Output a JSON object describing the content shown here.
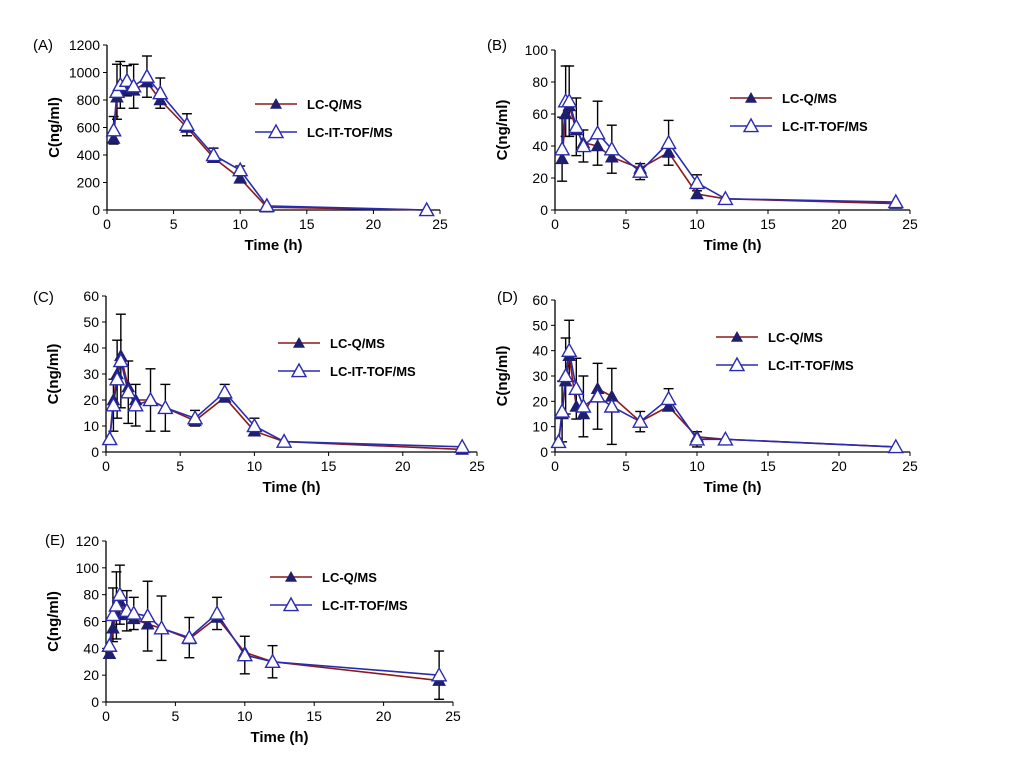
{
  "figure": {
    "legend_labels": [
      "LC-Q/MS",
      "LC-IT-TOF/MS"
    ],
    "colors": {
      "q_line": "#8b1a1a",
      "q_marker": "#1f1f6e",
      "it_line": "#2b2bb0",
      "it_marker_fill": "#ffffff",
      "axis": "#000000"
    }
  },
  "chart_data": [
    {
      "panel": "(A)",
      "type": "line",
      "xlabel": "Time (h)",
      "ylabel": "C(ng/ml)",
      "xlim": [
        0,
        25
      ],
      "ylim": [
        0,
        1200
      ],
      "xticks": [
        0,
        5,
        10,
        15,
        20,
        25
      ],
      "yticks": [
        0,
        200,
        400,
        600,
        800,
        1000,
        1200
      ],
      "series": [
        {
          "name": "LC-Q/MS",
          "x": [
            0.5,
            0.75,
            1,
            1.5,
            2,
            3,
            4,
            6,
            8,
            10,
            12,
            24
          ],
          "values": [
            520,
            820,
            870,
            880,
            870,
            930,
            800,
            600,
            380,
            230,
            20,
            0
          ]
        },
        {
          "name": "LC-IT-TOF/MS",
          "x": [
            0.5,
            0.75,
            1,
            1.5,
            2,
            3,
            4,
            6,
            8,
            10,
            12,
            24
          ],
          "values": [
            580,
            860,
            910,
            940,
            900,
            970,
            850,
            620,
            400,
            290,
            30,
            0
          ],
          "errors": [
            100,
            200,
            170,
            110,
            160,
            150,
            110,
            80,
            50,
            30,
            0,
            0
          ]
        }
      ]
    },
    {
      "panel": "(B)",
      "type": "line",
      "xlabel": "Time (h)",
      "ylabel": "C(ng/ml)",
      "xlim": [
        0,
        25
      ],
      "ylim": [
        0,
        100
      ],
      "xticks": [
        0,
        5,
        10,
        15,
        20,
        25
      ],
      "yticks": [
        0,
        20,
        40,
        60,
        80,
        100
      ],
      "series": [
        {
          "name": "LC-Q/MS",
          "x": [
            0.5,
            0.75,
            1,
            1.5,
            2,
            3,
            4,
            6,
            8,
            10,
            12,
            24
          ],
          "values": [
            32,
            60,
            65,
            50,
            42,
            40,
            33,
            26,
            36,
            10,
            7,
            4
          ]
        },
        {
          "name": "LC-IT-TOF/MS",
          "x": [
            0.5,
            0.75,
            1,
            1.5,
            2,
            3,
            4,
            6,
            8,
            10,
            12,
            24
          ],
          "values": [
            38,
            68,
            68,
            52,
            40,
            48,
            38,
            24,
            42,
            17,
            7,
            5
          ],
          "errors": [
            20,
            22,
            22,
            18,
            10,
            20,
            15,
            5,
            14,
            5,
            0,
            0
          ]
        }
      ]
    },
    {
      "panel": "(C)",
      "type": "line",
      "xlabel": "Time (h)",
      "ylabel": "C(ng/ml)",
      "xlim": [
        0,
        25
      ],
      "ylim": [
        0,
        60
      ],
      "xticks": [
        0,
        5,
        10,
        15,
        20,
        25
      ],
      "yticks": [
        0,
        10,
        20,
        30,
        40,
        50,
        60
      ],
      "series": [
        {
          "name": "LC-Q/MS",
          "x": [
            0.25,
            0.5,
            0.75,
            1,
            1.5,
            2,
            3,
            4,
            6,
            8,
            10,
            12,
            24
          ],
          "values": [
            5,
            20,
            30,
            37,
            25,
            20,
            20,
            17,
            12,
            21,
            8,
            4,
            1
          ]
        },
        {
          "name": "LC-IT-TOF/MS",
          "x": [
            0.25,
            0.5,
            0.75,
            1,
            1.5,
            2,
            3,
            4,
            6,
            8,
            10,
            12,
            24
          ],
          "values": [
            5,
            18,
            28,
            35,
            23,
            18,
            20,
            17,
            13,
            23,
            10,
            4,
            2
          ],
          "errors": [
            0,
            10,
            15,
            18,
            12,
            8,
            12,
            9,
            3,
            3,
            3,
            0,
            0
          ]
        }
      ]
    },
    {
      "panel": "(D)",
      "type": "line",
      "xlabel": "Time (h)",
      "ylabel": "C(ng/ml)",
      "xlim": [
        0,
        25
      ],
      "ylim": [
        0,
        60
      ],
      "xticks": [
        0,
        5,
        10,
        15,
        20,
        25
      ],
      "yticks": [
        0,
        10,
        20,
        30,
        40,
        50,
        60
      ],
      "series": [
        {
          "name": "LC-Q/MS",
          "x": [
            0.25,
            0.5,
            0.75,
            1,
            1.5,
            2,
            3,
            4,
            6,
            8,
            10,
            12,
            24
          ],
          "values": [
            4,
            15,
            28,
            38,
            18,
            15,
            25,
            22,
            12,
            18,
            6,
            5,
            2
          ]
        },
        {
          "name": "LC-IT-TOF/MS",
          "x": [
            0.25,
            0.5,
            0.75,
            1,
            1.5,
            2,
            3,
            4,
            6,
            8,
            10,
            12,
            24
          ],
          "values": [
            4,
            16,
            30,
            40,
            25,
            18,
            22,
            18,
            12,
            21,
            5,
            5,
            2
          ],
          "errors": [
            0,
            12,
            15,
            12,
            12,
            12,
            13,
            15,
            4,
            4,
            3,
            0,
            0
          ]
        }
      ]
    },
    {
      "panel": "(E)",
      "type": "line",
      "xlabel": "Time (h)",
      "ylabel": "C(ng/ml)",
      "xlim": [
        0,
        25
      ],
      "ylim": [
        0,
        120
      ],
      "xticks": [
        0,
        5,
        10,
        15,
        20,
        25
      ],
      "yticks": [
        0,
        20,
        40,
        60,
        80,
        100,
        120
      ],
      "series": [
        {
          "name": "LC-Q/MS",
          "x": [
            0.25,
            0.5,
            0.75,
            1,
            1.5,
            2,
            3,
            4,
            6,
            8,
            10,
            12,
            24
          ],
          "values": [
            36,
            55,
            66,
            75,
            65,
            62,
            58,
            55,
            47,
            63,
            37,
            30,
            16
          ]
        },
        {
          "name": "LC-IT-TOF/MS",
          "x": [
            0.25,
            0.5,
            0.75,
            1,
            1.5,
            2,
            3,
            4,
            6,
            8,
            10,
            12,
            24
          ],
          "values": [
            42,
            65,
            72,
            80,
            68,
            66,
            64,
            55,
            48,
            66,
            35,
            30,
            20
          ],
          "errors": [
            0,
            20,
            25,
            22,
            15,
            12,
            26,
            24,
            15,
            12,
            14,
            12,
            18
          ]
        }
      ]
    }
  ]
}
